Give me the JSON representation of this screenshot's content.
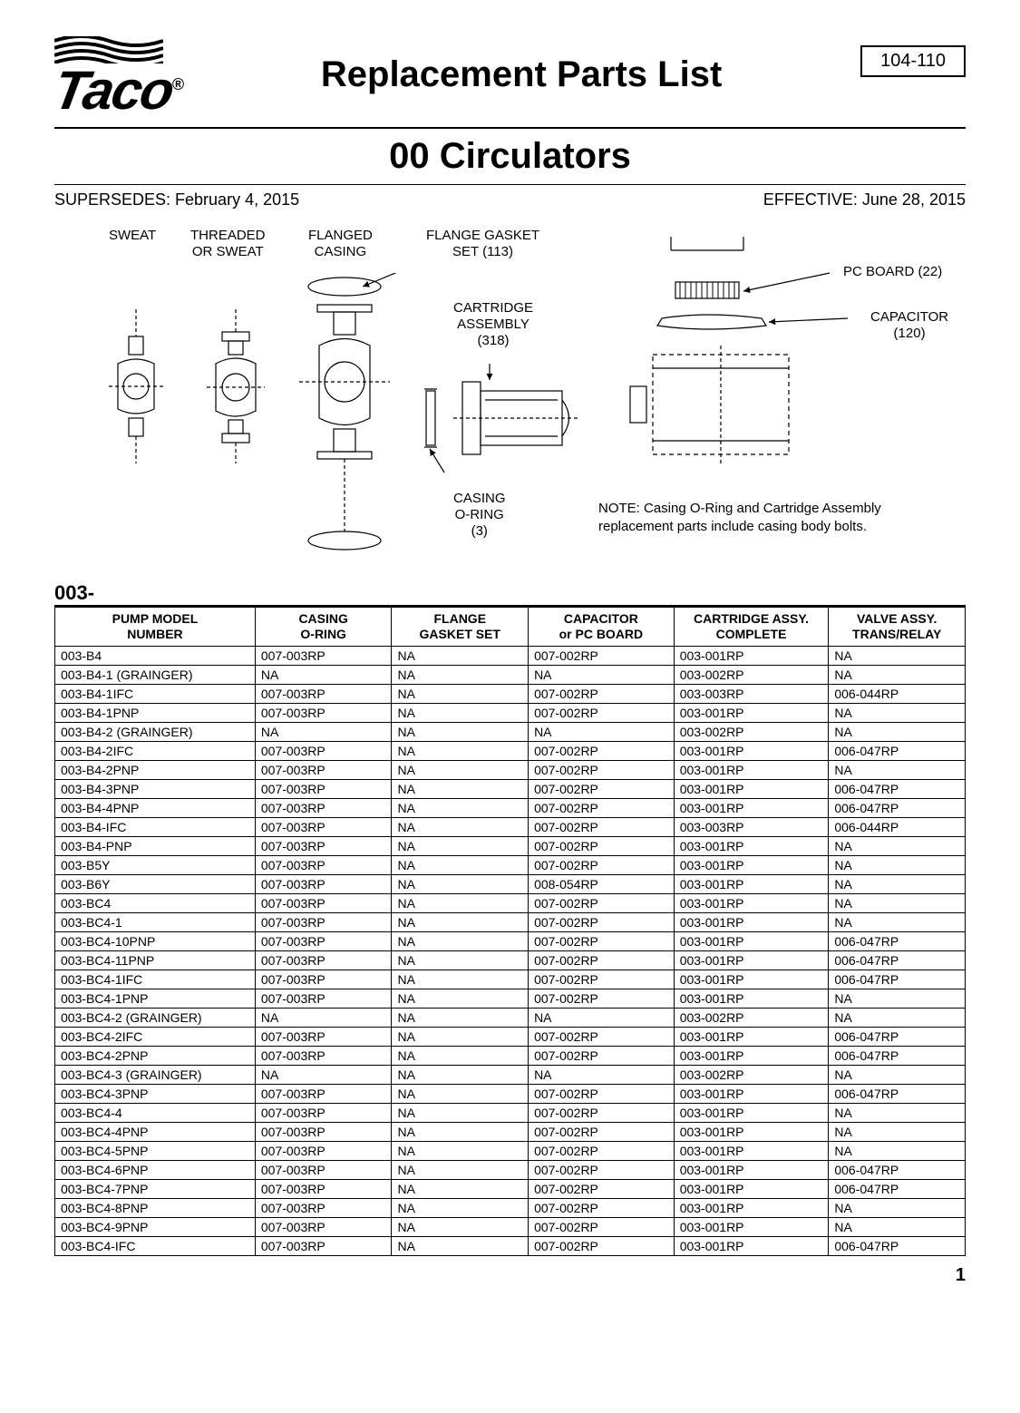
{
  "header": {
    "brand": "Taco",
    "reg": "®",
    "title": "Replacement Parts List",
    "docNumber": "104-110"
  },
  "subtitle": "00 Circulators",
  "dates": {
    "supersedes": "SUPERSEDES: February 4, 2015",
    "effective": "EFFECTIVE: June 28, 2015"
  },
  "diagram": {
    "labels": {
      "sweat": "SWEAT",
      "threaded": "THREADED\nOR SWEAT",
      "flanged": "FLANGED\nCASING",
      "flangeGasket": "FLANGE GASKET\nSET (113)",
      "cartridge": "CARTRIDGE\nASSEMBLY\n(318)",
      "casingOring": "CASING\nO-RING\n(3)",
      "pcBoard": "PC BOARD (22)",
      "capacitor": "CAPACITOR\n(120)"
    },
    "note": "NOTE: Casing O-Ring and Cartridge Assembly\nreplacement parts include casing body bolts."
  },
  "section": "003-",
  "table": {
    "columns": [
      "PUMP MODEL\nNUMBER",
      "CASING\nO-RING",
      "FLANGE\nGASKET SET",
      "CAPACITOR\nor PC BOARD",
      "CARTRIDGE ASSY.\nCOMPLETE",
      "VALVE ASSY.\nTRANS/RELAY"
    ],
    "colWidths": [
      "22%",
      "15%",
      "15%",
      "16%",
      "17%",
      "15%"
    ],
    "rows": [
      [
        "003-B4",
        "007-003RP",
        "NA",
        "007-002RP",
        "003-001RP",
        "NA"
      ],
      [
        "003-B4-1 (GRAINGER)",
        "NA",
        "NA",
        "NA",
        "003-002RP",
        "NA"
      ],
      [
        "003-B4-1IFC",
        "007-003RP",
        "NA",
        "007-002RP",
        "003-003RP",
        "006-044RP"
      ],
      [
        "003-B4-1PNP",
        "007-003RP",
        "NA",
        "007-002RP",
        "003-001RP",
        "NA"
      ],
      [
        "003-B4-2 (GRAINGER)",
        "NA",
        "NA",
        "NA",
        "003-002RP",
        "NA"
      ],
      [
        "003-B4-2IFC",
        "007-003RP",
        "NA",
        "007-002RP",
        "003-001RP",
        "006-047RP"
      ],
      [
        "003-B4-2PNP",
        "007-003RP",
        "NA",
        "007-002RP",
        "003-001RP",
        "NA"
      ],
      [
        "003-B4-3PNP",
        "007-003RP",
        "NA",
        "007-002RP",
        "003-001RP",
        "006-047RP"
      ],
      [
        "003-B4-4PNP",
        "007-003RP",
        "NA",
        "007-002RP",
        "003-001RP",
        "006-047RP"
      ],
      [
        "003-B4-IFC",
        "007-003RP",
        "NA",
        "007-002RP",
        "003-003RP",
        "006-044RP"
      ],
      [
        "003-B4-PNP",
        "007-003RP",
        "NA",
        "007-002RP",
        "003-001RP",
        "NA"
      ],
      [
        "003-B5Y",
        "007-003RP",
        "NA",
        "007-002RP",
        "003-001RP",
        "NA"
      ],
      [
        "003-B6Y",
        "007-003RP",
        "NA",
        "008-054RP",
        "003-001RP",
        "NA"
      ],
      [
        "003-BC4",
        "007-003RP",
        "NA",
        "007-002RP",
        "003-001RP",
        "NA"
      ],
      [
        "003-BC4-1",
        "007-003RP",
        "NA",
        "007-002RP",
        "003-001RP",
        "NA"
      ],
      [
        "003-BC4-10PNP",
        "007-003RP",
        "NA",
        "007-002RP",
        "003-001RP",
        "006-047RP"
      ],
      [
        "003-BC4-11PNP",
        "007-003RP",
        "NA",
        "007-002RP",
        "003-001RP",
        "006-047RP"
      ],
      [
        "003-BC4-1IFC",
        "007-003RP",
        "NA",
        "007-002RP",
        "003-001RP",
        "006-047RP"
      ],
      [
        "003-BC4-1PNP",
        "007-003RP",
        "NA",
        "007-002RP",
        "003-001RP",
        "NA"
      ],
      [
        "003-BC4-2 (GRAINGER)",
        "NA",
        "NA",
        "NA",
        "003-002RP",
        "NA"
      ],
      [
        "003-BC4-2IFC",
        "007-003RP",
        "NA",
        "007-002RP",
        "003-001RP",
        "006-047RP"
      ],
      [
        "003-BC4-2PNP",
        "007-003RP",
        "NA",
        "007-002RP",
        "003-001RP",
        "006-047RP"
      ],
      [
        "003-BC4-3 (GRAINGER)",
        "NA",
        "NA",
        "NA",
        "003-002RP",
        "NA"
      ],
      [
        "003-BC4-3PNP",
        "007-003RP",
        "NA",
        "007-002RP",
        "003-001RP",
        "006-047RP"
      ],
      [
        "003-BC4-4",
        "007-003RP",
        "NA",
        "007-002RP",
        "003-001RP",
        "NA"
      ],
      [
        "003-BC4-4PNP",
        "007-003RP",
        "NA",
        "007-002RP",
        "003-001RP",
        "NA"
      ],
      [
        "003-BC4-5PNP",
        "007-003RP",
        "NA",
        "007-002RP",
        "003-001RP",
        "NA"
      ],
      [
        "003-BC4-6PNP",
        "007-003RP",
        "NA",
        "007-002RP",
        "003-001RP",
        "006-047RP"
      ],
      [
        "003-BC4-7PNP",
        "007-003RP",
        "NA",
        "007-002RP",
        "003-001RP",
        "006-047RP"
      ],
      [
        "003-BC4-8PNP",
        "007-003RP",
        "NA",
        "007-002RP",
        "003-001RP",
        "NA"
      ],
      [
        "003-BC4-9PNP",
        "007-003RP",
        "NA",
        "007-002RP",
        "003-001RP",
        "NA"
      ],
      [
        "003-BC4-IFC",
        "007-003RP",
        "NA",
        "007-002RP",
        "003-001RP",
        "006-047RP"
      ]
    ]
  },
  "pageNumber": "1"
}
